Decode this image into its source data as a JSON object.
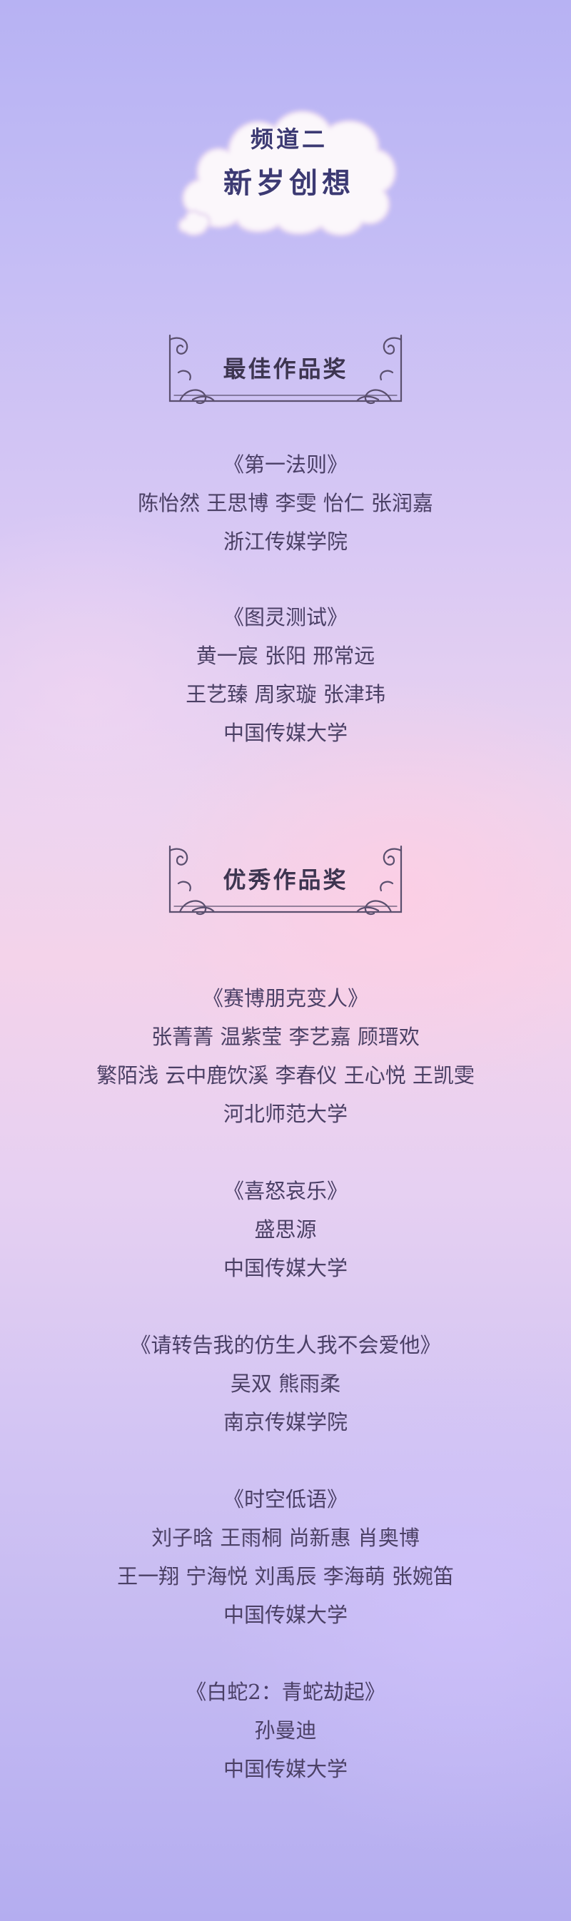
{
  "channel": {
    "line1": "频道二",
    "line2": "新岁创想"
  },
  "sections": [
    {
      "title": "最佳作品奖",
      "works": [
        {
          "title": "《第一法则》",
          "people": [
            "陈怡然 王思博 李雯 怡仁 张润嘉"
          ],
          "school": "浙江传媒学院"
        },
        {
          "title": "《图灵测试》",
          "people": [
            "黄一宸 张阳 邢常远",
            "王艺臻 周家璇 张津玮"
          ],
          "school": "中国传媒大学"
        }
      ]
    },
    {
      "title": "优秀作品奖",
      "works": [
        {
          "title": "《赛博朋克变人》",
          "people": [
            "张菁菁 温紫莹 李艺嘉 顾瑨欢",
            "繁陌浅 云中鹿饮溪 李春仪 王心悦 王凯雯"
          ],
          "school": "河北师范大学"
        },
        {
          "title": "《喜怒哀乐》",
          "people": [
            "盛思源"
          ],
          "school": "中国传媒大学"
        },
        {
          "title": "《请转告我的仿生人我不会爱他》",
          "people": [
            "吴双 熊雨柔"
          ],
          "school": "南京传媒学院"
        },
        {
          "title": "《时空低语》",
          "people": [
            "刘子晗 王雨桐 尚新惠 肖奥博",
            "王一翔 宁海悦 刘禹辰 李海萌 张婉笛"
          ],
          "school": "中国传媒大学"
        },
        {
          "title": "《白蛇2：青蛇劫起》",
          "people": [
            "孙曼迪"
          ],
          "school": "中国传媒大学"
        }
      ]
    }
  ],
  "colors": {
    "text": "#4b4065",
    "cloud_text": "#3c3a73",
    "ornament": "#5a4f6e"
  }
}
